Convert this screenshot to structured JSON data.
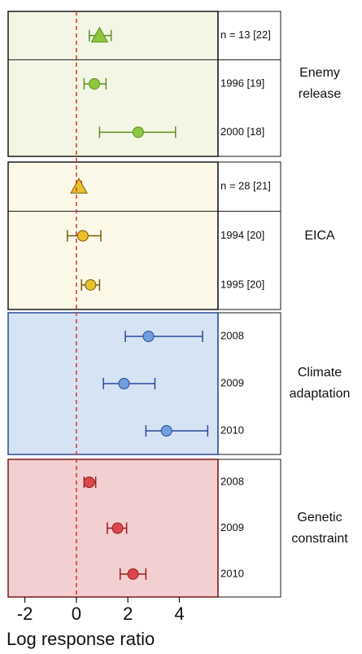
{
  "chart_data": {
    "type": "forest",
    "xlabel": "Log response ratio",
    "xlim": [
      -2.65,
      5.5
    ],
    "xticks": [
      -2,
      0,
      2,
      4
    ],
    "refline": 0,
    "groups": [
      {
        "name": "Enemy release",
        "fill": "#f3f6e4",
        "edge": "#1a1a1a",
        "color": "#8dc63f",
        "line_color": "#5f8f1f",
        "rows": [
          {
            "label": "n = 13 [22]",
            "marker": "triangle",
            "value": 0.9,
            "lower": 0.5,
            "upper": 1.35
          },
          {
            "label": "1996 [19]",
            "marker": "circle",
            "value": 0.7,
            "lower": 0.3,
            "upper": 1.15
          },
          {
            "label": "2000 [18]",
            "marker": "circle",
            "value": 2.4,
            "lower": 0.9,
            "upper": 3.85
          }
        ]
      },
      {
        "name": "EICA",
        "fill": "#fcf9e8",
        "edge": "#1a1a1a",
        "color": "#e8c02a",
        "line_color": "#7a5a10",
        "rows": [
          {
            "label": "n = 28 [21]",
            "marker": "triangle",
            "value": 0.1,
            "lower": 0.0,
            "upper": 0.2
          },
          {
            "label": "1994 [20]",
            "marker": "circle",
            "value": 0.25,
            "lower": -0.35,
            "upper": 0.95
          },
          {
            "label": "1995 [20]",
            "marker": "circle",
            "value": 0.55,
            "lower": 0.2,
            "upper": 0.9
          }
        ]
      },
      {
        "name": "Climate adaptation",
        "fill": "#d6e3f4",
        "edge": "#2a4a9a",
        "color": "#6f9fdc",
        "line_color": "#2a4a9a",
        "rows": [
          {
            "label": "2008",
            "marker": "circle",
            "value": 2.8,
            "lower": 1.9,
            "upper": 4.9
          },
          {
            "label": "2009",
            "marker": "circle",
            "value": 1.85,
            "lower": 1.05,
            "upper": 3.05
          },
          {
            "label": "2010",
            "marker": "circle",
            "value": 3.5,
            "lower": 2.7,
            "upper": 5.1
          }
        ]
      },
      {
        "name": "Genetic constraint",
        "fill": "#f2cfd0",
        "edge": "#7a1a1a",
        "color": "#d9484c",
        "line_color": "#9a1a1a",
        "rows": [
          {
            "label": "2008",
            "marker": "circle",
            "value": 0.5,
            "lower": 0.3,
            "upper": 0.75
          },
          {
            "label": "2009",
            "marker": "circle",
            "value": 1.6,
            "lower": 1.2,
            "upper": 1.95
          },
          {
            "label": "2010",
            "marker": "circle",
            "value": 2.2,
            "lower": 1.7,
            "upper": 2.7
          }
        ]
      }
    ]
  }
}
